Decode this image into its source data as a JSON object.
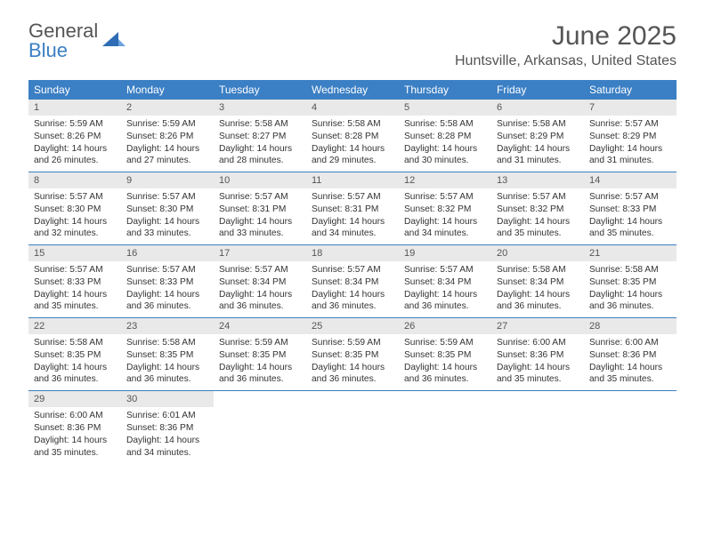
{
  "brand": {
    "part1": "General",
    "part2": "Blue"
  },
  "title": "June 2025",
  "location": "Huntsville, Arkansas, United States",
  "colors": {
    "header_bg": "#3b7fc4",
    "header_text": "#ffffff",
    "daynum_bg": "#e9e9e9",
    "text": "#333333",
    "muted": "#555555",
    "rule": "#3b7fc4"
  },
  "day_names": [
    "Sunday",
    "Monday",
    "Tuesday",
    "Wednesday",
    "Thursday",
    "Friday",
    "Saturday"
  ],
  "weeks": [
    [
      {
        "n": "1",
        "sr": "Sunrise: 5:59 AM",
        "ss": "Sunset: 8:26 PM",
        "dl": "Daylight: 14 hours and 26 minutes."
      },
      {
        "n": "2",
        "sr": "Sunrise: 5:59 AM",
        "ss": "Sunset: 8:26 PM",
        "dl": "Daylight: 14 hours and 27 minutes."
      },
      {
        "n": "3",
        "sr": "Sunrise: 5:58 AM",
        "ss": "Sunset: 8:27 PM",
        "dl": "Daylight: 14 hours and 28 minutes."
      },
      {
        "n": "4",
        "sr": "Sunrise: 5:58 AM",
        "ss": "Sunset: 8:28 PM",
        "dl": "Daylight: 14 hours and 29 minutes."
      },
      {
        "n": "5",
        "sr": "Sunrise: 5:58 AM",
        "ss": "Sunset: 8:28 PM",
        "dl": "Daylight: 14 hours and 30 minutes."
      },
      {
        "n": "6",
        "sr": "Sunrise: 5:58 AM",
        "ss": "Sunset: 8:29 PM",
        "dl": "Daylight: 14 hours and 31 minutes."
      },
      {
        "n": "7",
        "sr": "Sunrise: 5:57 AM",
        "ss": "Sunset: 8:29 PM",
        "dl": "Daylight: 14 hours and 31 minutes."
      }
    ],
    [
      {
        "n": "8",
        "sr": "Sunrise: 5:57 AM",
        "ss": "Sunset: 8:30 PM",
        "dl": "Daylight: 14 hours and 32 minutes."
      },
      {
        "n": "9",
        "sr": "Sunrise: 5:57 AM",
        "ss": "Sunset: 8:30 PM",
        "dl": "Daylight: 14 hours and 33 minutes."
      },
      {
        "n": "10",
        "sr": "Sunrise: 5:57 AM",
        "ss": "Sunset: 8:31 PM",
        "dl": "Daylight: 14 hours and 33 minutes."
      },
      {
        "n": "11",
        "sr": "Sunrise: 5:57 AM",
        "ss": "Sunset: 8:31 PM",
        "dl": "Daylight: 14 hours and 34 minutes."
      },
      {
        "n": "12",
        "sr": "Sunrise: 5:57 AM",
        "ss": "Sunset: 8:32 PM",
        "dl": "Daylight: 14 hours and 34 minutes."
      },
      {
        "n": "13",
        "sr": "Sunrise: 5:57 AM",
        "ss": "Sunset: 8:32 PM",
        "dl": "Daylight: 14 hours and 35 minutes."
      },
      {
        "n": "14",
        "sr": "Sunrise: 5:57 AM",
        "ss": "Sunset: 8:33 PM",
        "dl": "Daylight: 14 hours and 35 minutes."
      }
    ],
    [
      {
        "n": "15",
        "sr": "Sunrise: 5:57 AM",
        "ss": "Sunset: 8:33 PM",
        "dl": "Daylight: 14 hours and 35 minutes."
      },
      {
        "n": "16",
        "sr": "Sunrise: 5:57 AM",
        "ss": "Sunset: 8:33 PM",
        "dl": "Daylight: 14 hours and 36 minutes."
      },
      {
        "n": "17",
        "sr": "Sunrise: 5:57 AM",
        "ss": "Sunset: 8:34 PM",
        "dl": "Daylight: 14 hours and 36 minutes."
      },
      {
        "n": "18",
        "sr": "Sunrise: 5:57 AM",
        "ss": "Sunset: 8:34 PM",
        "dl": "Daylight: 14 hours and 36 minutes."
      },
      {
        "n": "19",
        "sr": "Sunrise: 5:57 AM",
        "ss": "Sunset: 8:34 PM",
        "dl": "Daylight: 14 hours and 36 minutes."
      },
      {
        "n": "20",
        "sr": "Sunrise: 5:58 AM",
        "ss": "Sunset: 8:34 PM",
        "dl": "Daylight: 14 hours and 36 minutes."
      },
      {
        "n": "21",
        "sr": "Sunrise: 5:58 AM",
        "ss": "Sunset: 8:35 PM",
        "dl": "Daylight: 14 hours and 36 minutes."
      }
    ],
    [
      {
        "n": "22",
        "sr": "Sunrise: 5:58 AM",
        "ss": "Sunset: 8:35 PM",
        "dl": "Daylight: 14 hours and 36 minutes."
      },
      {
        "n": "23",
        "sr": "Sunrise: 5:58 AM",
        "ss": "Sunset: 8:35 PM",
        "dl": "Daylight: 14 hours and 36 minutes."
      },
      {
        "n": "24",
        "sr": "Sunrise: 5:59 AM",
        "ss": "Sunset: 8:35 PM",
        "dl": "Daylight: 14 hours and 36 minutes."
      },
      {
        "n": "25",
        "sr": "Sunrise: 5:59 AM",
        "ss": "Sunset: 8:35 PM",
        "dl": "Daylight: 14 hours and 36 minutes."
      },
      {
        "n": "26",
        "sr": "Sunrise: 5:59 AM",
        "ss": "Sunset: 8:35 PM",
        "dl": "Daylight: 14 hours and 36 minutes."
      },
      {
        "n": "27",
        "sr": "Sunrise: 6:00 AM",
        "ss": "Sunset: 8:36 PM",
        "dl": "Daylight: 14 hours and 35 minutes."
      },
      {
        "n": "28",
        "sr": "Sunrise: 6:00 AM",
        "ss": "Sunset: 8:36 PM",
        "dl": "Daylight: 14 hours and 35 minutes."
      }
    ],
    [
      {
        "n": "29",
        "sr": "Sunrise: 6:00 AM",
        "ss": "Sunset: 8:36 PM",
        "dl": "Daylight: 14 hours and 35 minutes."
      },
      {
        "n": "30",
        "sr": "Sunrise: 6:01 AM",
        "ss": "Sunset: 8:36 PM",
        "dl": "Daylight: 14 hours and 34 minutes."
      },
      null,
      null,
      null,
      null,
      null
    ]
  ]
}
